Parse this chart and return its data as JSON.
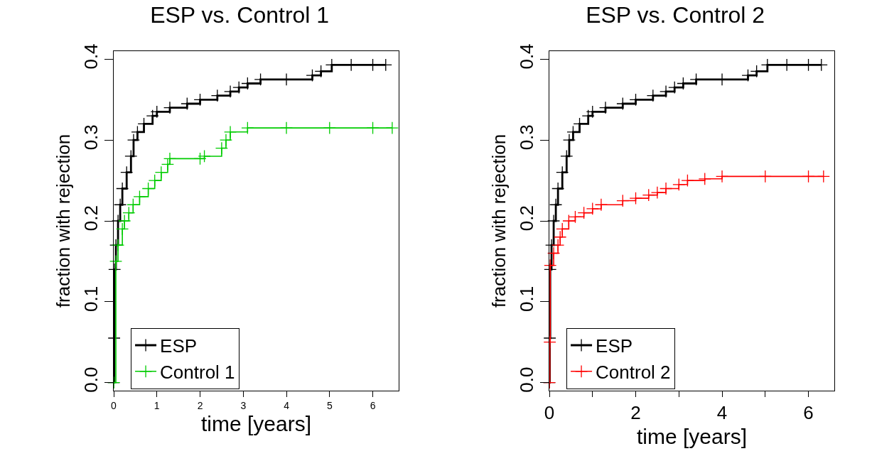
{
  "chart_data": [
    {
      "type": "step",
      "title": "ESP vs. Control 1",
      "xlabel": "time [years]",
      "ylabel": "fraction with rejection",
      "xlim": [
        0,
        6.6
      ],
      "ylim": [
        -0.01,
        0.41
      ],
      "xticks": [
        0,
        1,
        2,
        3,
        4,
        5,
        6
      ],
      "yticks": [
        {
          "value": 0,
          "label": "0.0"
        },
        {
          "value": 0.1,
          "label": "0.1"
        },
        {
          "value": 0.2,
          "label": "0.2"
        },
        {
          "value": 0.3,
          "label": "0.3"
        },
        {
          "value": 0.4,
          "label": "0.4"
        }
      ],
      "grid": false,
      "legend": "bottom",
      "marker": "cross",
      "line_style": "solid",
      "series": [
        {
          "name": "ESP",
          "color": "#000000",
          "x": [
            0,
            0.01,
            0.02,
            0.05,
            0.1,
            0.15,
            0.2,
            0.3,
            0.4,
            0.46,
            0.55,
            0.7,
            0.9,
            1.0,
            1.3,
            1.7,
            2.0,
            2.4,
            2.7,
            2.9,
            3.1,
            3.4,
            4.0,
            4.6,
            4.8,
            5.05,
            5.5,
            6.0,
            6.3
          ],
          "values": [
            0,
            0.055,
            0.14,
            0.17,
            0.2,
            0.22,
            0.24,
            0.26,
            0.28,
            0.3,
            0.31,
            0.32,
            0.33,
            0.335,
            0.34,
            0.345,
            0.35,
            0.355,
            0.36,
            0.365,
            0.37,
            0.375,
            0.375,
            0.38,
            0.385,
            0.393,
            0.393,
            0.393,
            0.393
          ]
        },
        {
          "name": "Control 1",
          "color": "#00cc00",
          "x": [
            0,
            0.05,
            0.1,
            0.2,
            0.25,
            0.35,
            0.45,
            0.6,
            0.8,
            0.95,
            1.1,
            1.25,
            1.3,
            2.0,
            2.1,
            2.5,
            2.6,
            2.7,
            3.1,
            4.0,
            5.0,
            6.0,
            6.45
          ],
          "values": [
            0,
            0.15,
            0.17,
            0.19,
            0.2,
            0.21,
            0.22,
            0.23,
            0.24,
            0.25,
            0.26,
            0.27,
            0.277,
            0.277,
            0.28,
            0.29,
            0.3,
            0.31,
            0.315,
            0.315,
            0.315,
            0.315,
            0.315
          ]
        }
      ]
    },
    {
      "type": "step",
      "title": "ESP vs. Control 2",
      "xlabel": "time [years]",
      "ylabel": "fraction with rejection",
      "xlim": [
        0,
        6.6
      ],
      "ylim": [
        -0.01,
        0.41
      ],
      "xticks": [
        0,
        {
          "value": 1,
          "label": null
        },
        2,
        {
          "value": 3,
          "label": null
        },
        4,
        {
          "value": 5,
          "label": null
        },
        6
      ],
      "yticks": [
        {
          "value": 0,
          "label": "0.0"
        },
        {
          "value": 0.1,
          "label": "0.1"
        },
        {
          "value": 0.2,
          "label": "0.2"
        },
        {
          "value": 0.3,
          "label": "0.3"
        },
        {
          "value": 0.4,
          "label": "0.4"
        }
      ],
      "grid": false,
      "legend": "bottom",
      "marker": "cross",
      "line_style": "solid",
      "series": [
        {
          "name": "ESP",
          "color": "#000000",
          "x": [
            0,
            0.01,
            0.02,
            0.05,
            0.1,
            0.15,
            0.2,
            0.3,
            0.4,
            0.46,
            0.55,
            0.7,
            0.9,
            1.0,
            1.3,
            1.7,
            2.0,
            2.4,
            2.7,
            2.9,
            3.1,
            3.4,
            4.0,
            4.6,
            4.8,
            5.05,
            5.5,
            6.0,
            6.3
          ],
          "values": [
            0,
            0.055,
            0.14,
            0.17,
            0.2,
            0.22,
            0.24,
            0.26,
            0.28,
            0.3,
            0.31,
            0.32,
            0.33,
            0.335,
            0.34,
            0.345,
            0.35,
            0.355,
            0.36,
            0.365,
            0.37,
            0.375,
            0.375,
            0.38,
            0.385,
            0.393,
            0.393,
            0.393,
            0.393
          ]
        },
        {
          "name": "Control 2",
          "color": "#ff0000",
          "x": [
            0,
            0.01,
            0.02,
            0.1,
            0.2,
            0.25,
            0.3,
            0.45,
            0.6,
            0.8,
            1.0,
            1.2,
            1.7,
            2.0,
            2.3,
            2.5,
            2.7,
            3.0,
            3.2,
            3.6,
            4.0,
            5.0,
            6.0,
            6.35
          ],
          "values": [
            0,
            0.05,
            0.145,
            0.16,
            0.17,
            0.18,
            0.19,
            0.2,
            0.205,
            0.21,
            0.215,
            0.22,
            0.225,
            0.228,
            0.232,
            0.235,
            0.24,
            0.245,
            0.25,
            0.252,
            0.255,
            0.255,
            0.255,
            0.255
          ]
        }
      ]
    }
  ]
}
